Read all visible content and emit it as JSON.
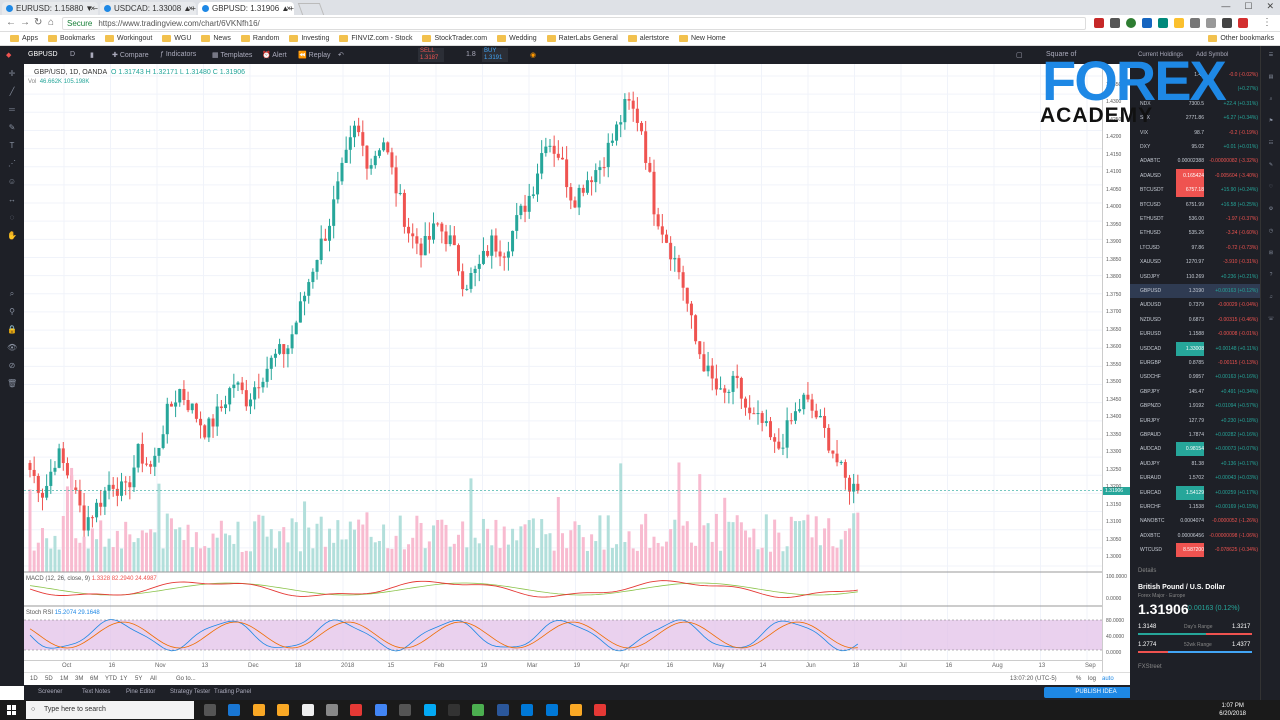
{
  "browser": {
    "tabs": [
      {
        "label": "EURUSD: 1.15880 ▼−0.01",
        "active": false
      },
      {
        "label": "USDCAD: 1.33008 ▲+0.1",
        "active": false
      },
      {
        "label": "GBPUSD: 1.31906 ▲+0.1",
        "active": true
      }
    ],
    "secure_label": "Secure",
    "url": "https://www.tradingview.com/chart/6VKNfh16/",
    "bookmarks": [
      "Apps",
      "Bookmarks",
      "Workingout",
      "WGU",
      "News",
      "Random",
      "Investing",
      "FINVIZ.com - Stock",
      "StockTrader.com",
      "Wedding",
      "RaterLabs General",
      "alertstore",
      "New Home"
    ],
    "other_bookmarks": "Other bookmarks"
  },
  "toolbar": {
    "symbol": "GBPUSD",
    "compare": "Compare",
    "indicators": "Indicators",
    "templates": "Templates",
    "alert": "Alert",
    "replay": "Replay",
    "sell_label": "SELL",
    "sell_price": "1.3187",
    "spread": "1.8",
    "buy_label": "BUY",
    "buy_price": "1.3191",
    "square": "Square of",
    "current_holdings": "Current Holdings",
    "add_symbol": "Add Symbol"
  },
  "legend": {
    "title": "GBP/USD, 1D, OANDA",
    "ohlc": "O 1.31743  H 1.32171  L 1.31480  C 1.31906",
    "vol": "Vol",
    "vol_values": "46.662K  105.198K",
    "macd_label": "MACD (12, 26, close, 9)",
    "macd_values": "1.3328  82.2940  24.4987",
    "stoch_label": "Stoch RSI",
    "stoch_values": "15.2074  29.1648"
  },
  "price_scale": {
    "labels": [
      "1.4350",
      "1.4300",
      "1.4250",
      "1.4200",
      "1.4150",
      "1.4100",
      "1.4050",
      "1.4000",
      "1.3950",
      "1.3900",
      "1.3850",
      "1.3800",
      "1.3750",
      "1.3700",
      "1.3650",
      "1.3600",
      "1.3550",
      "1.3500",
      "1.3450",
      "1.3400",
      "1.3350",
      "1.3300",
      "1.3250",
      "1.3200",
      "1.3150",
      "1.3100",
      "1.3050",
      "1.3000"
    ],
    "current": "1.31906",
    "macd_labels": [
      "100.0000",
      "0.0000"
    ],
    "stoch_labels": [
      "80.0000",
      "40.0000",
      "0.0000"
    ]
  },
  "time_scale": [
    "Oct",
    "16",
    "Nov",
    "13",
    "Dec",
    "18",
    "2018",
    "15",
    "Feb",
    "19",
    "Mar",
    "19",
    "Apr",
    "16",
    "May",
    "14",
    "Jun",
    "18",
    "Jul",
    "16",
    "Aug",
    "13",
    "Sep"
  ],
  "range_bar": {
    "ranges": [
      "1D",
      "5D",
      "1M",
      "3M",
      "6M",
      "YTD",
      "1Y",
      "5Y",
      "All"
    ],
    "goto": "Go to...",
    "time": "13:07:20 (UTC-5)",
    "pct": "%",
    "log": "log",
    "auto": "auto"
  },
  "bottom_tabs": [
    "Screener",
    "Text Notes",
    "Pine Editor",
    "Strategy Tester",
    "Trading Panel"
  ],
  "publish": "PUBLISH IDEA",
  "watchlist": {
    "rows": [
      {
        "sym": "",
        "last": "1.45",
        "chg": "-0.0 (-0.02%)",
        "dir": "neg",
        "hl": ""
      },
      {
        "sym": "",
        "last": "",
        "chg": "(+0.27%)",
        "dir": "pos",
        "hl": ""
      },
      {
        "sym": "NDX",
        "last": "7300.5",
        "chg": "+22.4 (+0.31%)",
        "dir": "pos",
        "hl": ""
      },
      {
        "sym": "SPX",
        "last": "2771.86",
        "chg": "+6.27 (+0.34%)",
        "dir": "pos",
        "hl": ""
      },
      {
        "sym": "VIX",
        "last": "98.7",
        "chg": "-0.2 (-0.19%)",
        "dir": "neg",
        "hl": ""
      },
      {
        "sym": "DXY",
        "last": "95.02",
        "chg": "+0.01 (+0.01%)",
        "dir": "pos",
        "hl": ""
      },
      {
        "sym": "ADABTC",
        "last": "0.00002388",
        "chg": "-0.00000082 (-3.32%)",
        "dir": "neg",
        "hl": ""
      },
      {
        "sym": "ADAUSD",
        "last": "0.165424",
        "chg": "-0.005604 (-3.40%)",
        "dir": "neg",
        "hl": "r"
      },
      {
        "sym": "BTCUSDT",
        "last": "6757.18",
        "chg": "+15.90 (+0.24%)",
        "dir": "pos",
        "hl": "r"
      },
      {
        "sym": "BTCUSD",
        "last": "6751.99",
        "chg": "+16.58 (+0.25%)",
        "dir": "pos",
        "hl": ""
      },
      {
        "sym": "ETHUSDT",
        "last": "536.00",
        "chg": "-1.97 (-0.37%)",
        "dir": "neg",
        "hl": ""
      },
      {
        "sym": "ETHUSD",
        "last": "535.26",
        "chg": "-3.24 (-0.60%)",
        "dir": "neg",
        "hl": ""
      },
      {
        "sym": "LTCUSD",
        "last": "97.86",
        "chg": "-0.72 (-0.73%)",
        "dir": "neg",
        "hl": ""
      },
      {
        "sym": "XAUUSD",
        "last": "1270.97",
        "chg": "-3.910 (-0.31%)",
        "dir": "neg",
        "hl": ""
      },
      {
        "sym": "USDJPY",
        "last": "110.269",
        "chg": "+0.236 (+0.21%)",
        "dir": "pos",
        "hl": ""
      },
      {
        "sym": "GBPUSD",
        "last": "1.3190",
        "chg": "+0.00163 (+0.12%)",
        "dir": "pos",
        "hl": "",
        "sel": true
      },
      {
        "sym": "AUDUSD",
        "last": "0.7379",
        "chg": "-0.00029 (-0.04%)",
        "dir": "neg",
        "hl": ""
      },
      {
        "sym": "NZDUSD",
        "last": "0.6873",
        "chg": "-0.00315 (-0.46%)",
        "dir": "neg",
        "hl": ""
      },
      {
        "sym": "EURUSD",
        "last": "1.1588",
        "chg": "-0.00008 (-0.01%)",
        "dir": "neg",
        "hl": ""
      },
      {
        "sym": "USDCAD",
        "last": "1.33008",
        "chg": "+0.00148 (+0.11%)",
        "dir": "pos",
        "hl": "g"
      },
      {
        "sym": "EURGBP",
        "last": "0.8785",
        "chg": "-0.00115 (-0.13%)",
        "dir": "neg",
        "hl": ""
      },
      {
        "sym": "USDCHF",
        "last": "0.9957",
        "chg": "+0.00163 (+0.16%)",
        "dir": "pos",
        "hl": ""
      },
      {
        "sym": "GBPJPY",
        "last": "145.47",
        "chg": "+0.491 (+0.34%)",
        "dir": "pos",
        "hl": ""
      },
      {
        "sym": "GBPNZD",
        "last": "1.9192",
        "chg": "+0.01094 (+0.57%)",
        "dir": "pos",
        "hl": ""
      },
      {
        "sym": "EURJPY",
        "last": "127.79",
        "chg": "+0.230 (+0.18%)",
        "dir": "pos",
        "hl": ""
      },
      {
        "sym": "GBPAUD",
        "last": "1.7874",
        "chg": "+0.00282 (+0.16%)",
        "dir": "pos",
        "hl": ""
      },
      {
        "sym": "AUDCAD",
        "last": "0.98154",
        "chg": "+0.00073 (+0.07%)",
        "dir": "pos",
        "hl": "g"
      },
      {
        "sym": "AUDJPY",
        "last": "81.38",
        "chg": "+0.136 (+0.17%)",
        "dir": "pos",
        "hl": ""
      },
      {
        "sym": "EURAUD",
        "last": "1.5702",
        "chg": "+0.00043 (+0.03%)",
        "dir": "pos",
        "hl": ""
      },
      {
        "sym": "EURCAD",
        "last": "1.54129",
        "chg": "+0.00259 (+0.17%)",
        "dir": "pos",
        "hl": "g"
      },
      {
        "sym": "EURCHF",
        "last": "1.1538",
        "chg": "+0.00169 (+0.15%)",
        "dir": "pos",
        "hl": ""
      },
      {
        "sym": "NANOBTC",
        "last": "0.0004074",
        "chg": "-0.0000052 (-1.26%)",
        "dir": "neg",
        "hl": ""
      },
      {
        "sym": "ADXBTC",
        "last": "0.00006456",
        "chg": "-0.00000098 (-1.06%)",
        "dir": "neg",
        "hl": ""
      },
      {
        "sym": "WTCUSD",
        "last": "8.587200",
        "chg": "-0.078625 (-0.34%)",
        "dir": "neg",
        "hl": "r"
      }
    ],
    "details_label": "Details",
    "detail_title": "British Pound / U.S. Dollar",
    "detail_sub": "Forex Major · Europe",
    "detail_price": "1.31906",
    "detail_chg": "0.00163 (0.12%)",
    "days_range_label": "Day's Range",
    "days_low": "1.3148",
    "days_high": "1.3217",
    "wk52_label": "52wk Range",
    "wk52_low": "1.2774",
    "wk52_high": "1.4377",
    "fxstreet": "FXStreet"
  },
  "logo": {
    "line1": "FOREX",
    "line2": "ACADEMY"
  },
  "taskbar": {
    "search": "Type here to search",
    "time": "1:07 PM",
    "date": "6/20/2018"
  },
  "chart_data": {
    "type": "candlestick",
    "symbol": "GBP/USD",
    "interval": "1D",
    "xrange": [
      "2017-10",
      "2018-09"
    ],
    "ylim": [
      1.2975,
      1.4375
    ],
    "close_path": [
      1.325,
      1.318,
      1.33,
      1.322,
      1.31,
      1.315,
      1.322,
      1.318,
      1.33,
      1.325,
      1.34,
      1.348,
      1.342,
      1.336,
      1.342,
      1.35,
      1.345,
      1.352,
      1.357,
      1.36,
      1.372,
      1.385,
      1.395,
      1.41,
      1.423,
      1.412,
      1.42,
      1.405,
      1.392,
      1.388,
      1.395,
      1.39,
      1.378,
      1.382,
      1.39,
      1.388,
      1.397,
      1.405,
      1.42,
      1.415,
      1.402,
      1.408,
      1.412,
      1.42,
      1.43,
      1.424,
      1.4,
      1.39,
      1.38,
      1.362,
      1.352,
      1.345,
      1.35,
      1.34,
      1.338,
      1.33,
      1.338,
      1.345,
      1.34,
      1.332,
      1.322,
      1.319
    ],
    "current": 1.31906,
    "macd_range": [
      -100,
      100
    ],
    "stoch_range": [
      0,
      100
    ]
  }
}
